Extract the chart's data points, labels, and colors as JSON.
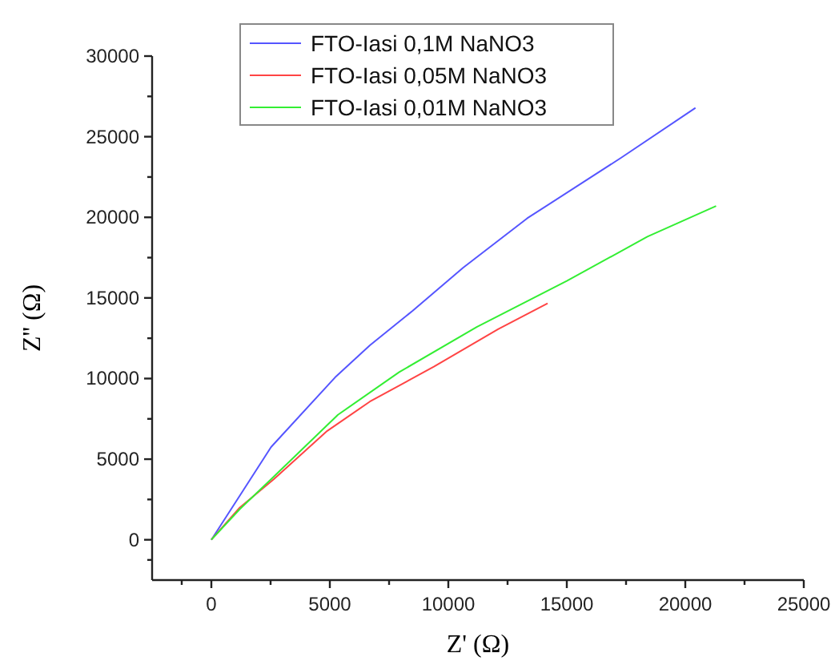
{
  "chart_data": {
    "type": "line",
    "xlabel": "Z'  (Ω)",
    "ylabel": "Z'' (Ω)",
    "xlim": [
      -2500,
      25000
    ],
    "ylim": [
      -2500,
      30000
    ],
    "xticks": [
      0,
      5000,
      10000,
      15000,
      20000,
      25000
    ],
    "yticks": [
      0,
      5000,
      10000,
      15000,
      20000,
      25000,
      30000
    ],
    "grid": false,
    "legend": "top",
    "marker": "none",
    "line_style": "solid",
    "series": [
      {
        "name": "FTO-Iasi 0,1M NaNO3",
        "color": "#5555ff",
        "x": [
          0,
          1280,
          2520,
          5220,
          6690,
          8490,
          10630,
          13330,
          17300,
          20430
        ],
        "values": [
          0,
          2920,
          5750,
          10070,
          12060,
          14200,
          16880,
          19940,
          23700,
          26790
        ]
      },
      {
        "name": "FTO-Iasi 0,05M NaNO3",
        "color": "#ff4444",
        "x": [
          0,
          1200,
          2640,
          4890,
          6690,
          9390,
          12100,
          14190
        ],
        "values": [
          0,
          2000,
          3760,
          6750,
          8570,
          10740,
          13060,
          14660
        ]
      },
      {
        "name": "FTO-Iasi 0,01M NaNO3",
        "color": "#33ee33",
        "x": [
          0,
          1200,
          2640,
          5340,
          7930,
          11200,
          15000,
          18400,
          21300
        ],
        "values": [
          0,
          1900,
          3920,
          7750,
          10400,
          13200,
          16050,
          18800,
          20700
        ]
      }
    ]
  }
}
